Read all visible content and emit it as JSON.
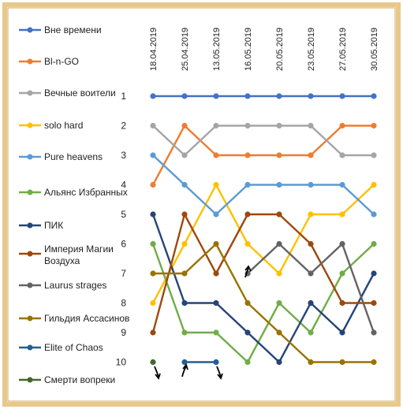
{
  "chart_data": {
    "type": "line",
    "title": "",
    "xlabel": "",
    "ylabel": "",
    "x": [
      "18.04.2019",
      "25.04.2019",
      "13.05.2019",
      "16.05.2019",
      "20.05.2019",
      "23.05.2019",
      "27.05.2019",
      "30.05.2019"
    ],
    "y_ticks": [
      1,
      2,
      3,
      4,
      5,
      6,
      7,
      8,
      9,
      10
    ],
    "ylim": [
      1,
      10
    ],
    "y_inverted": true,
    "legend_position": "left",
    "frame_color": "#e8c98a",
    "series": [
      {
        "name": "Вне времени",
        "color": "#4472c4",
        "values": [
          1,
          1,
          1,
          1,
          1,
          1,
          1,
          1
        ]
      },
      {
        "name": "Bl-n-GO",
        "color": "#ed7d31",
        "values": [
          4,
          2,
          3,
          3,
          3,
          3,
          2,
          2
        ]
      },
      {
        "name": "Вечные воители",
        "color": "#a5a5a5",
        "values": [
          2,
          3,
          2,
          2,
          2,
          2,
          3,
          3
        ]
      },
      {
        "name": "solo hard",
        "color": "#ffc000",
        "values": [
          8,
          6,
          4,
          6,
          7,
          5,
          5,
          4
        ]
      },
      {
        "name": "Pure heavens",
        "color": "#5b9bd5",
        "values": [
          3,
          4,
          5,
          4,
          4,
          4,
          4,
          5
        ]
      },
      {
        "name": "Альянс Избранных",
        "color": "#70ad47",
        "values": [
          6,
          9,
          9,
          10,
          8,
          9,
          7,
          6
        ]
      },
      {
        "name": "ПИК",
        "color": "#264478",
        "values": [
          5,
          8,
          8,
          9,
          10,
          8,
          9,
          7
        ]
      },
      {
        "name": "Империя Магии Воздуха",
        "color": "#9e480e",
        "values": [
          9,
          5,
          7,
          5,
          5,
          6,
          8,
          8
        ]
      },
      {
        "name": "Laurus strages",
        "color": "#636363",
        "values": [
          null,
          null,
          null,
          7,
          6,
          7,
          6,
          9
        ]
      },
      {
        "name": "Гильдия Ассасинов",
        "color": "#997300",
        "values": [
          7,
          7,
          6,
          8,
          9,
          10,
          10,
          10
        ]
      },
      {
        "name": "Elite of Chaos",
        "color": "#255e91",
        "values": [
          null,
          10,
          10,
          null,
          null,
          null,
          null,
          null
        ]
      },
      {
        "name": "Смерти вопреки",
        "color": "#43682b",
        "values": [
          10,
          null,
          null,
          null,
          null,
          null,
          null,
          null
        ]
      }
    ]
  }
}
